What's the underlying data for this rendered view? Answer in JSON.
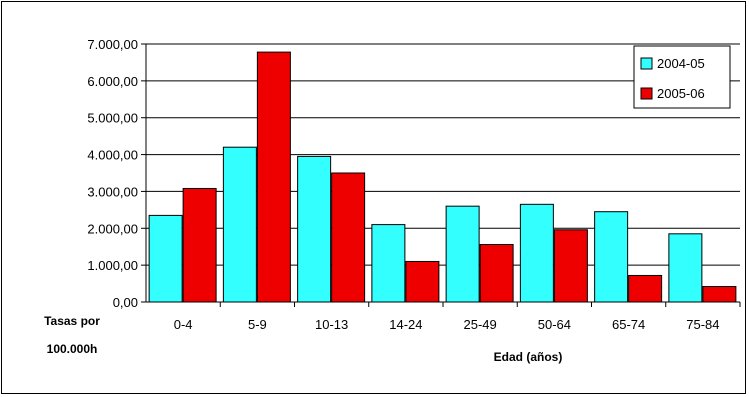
{
  "chart_data": {
    "type": "bar",
    "categories": [
      "0-4",
      "5-9",
      "10-13",
      "14-24",
      "25-49",
      "50-64",
      "65-74",
      "75-84"
    ],
    "series": [
      {
        "name": "2004-05",
        "color": "#33FFFF",
        "values": [
          2350,
          4200,
          3950,
          2100,
          2600,
          2650,
          2450,
          1850
        ]
      },
      {
        "name": "2005-06",
        "color": "#EE0000",
        "values": [
          3080,
          6780,
          3500,
          1100,
          1560,
          1960,
          720,
          420
        ]
      }
    ],
    "xlabel": "Edad (años)",
    "ylabel": [
      "Tasas por",
      "100.000h"
    ],
    "yticks": [
      "0,00",
      "1.000,00",
      "2.000,00",
      "3.000,00",
      "4.000,00",
      "5.000,00",
      "6.000,00",
      "7.000,00"
    ],
    "ylim": [
      0,
      7000
    ],
    "grid": true,
    "legend": "top-right"
  }
}
